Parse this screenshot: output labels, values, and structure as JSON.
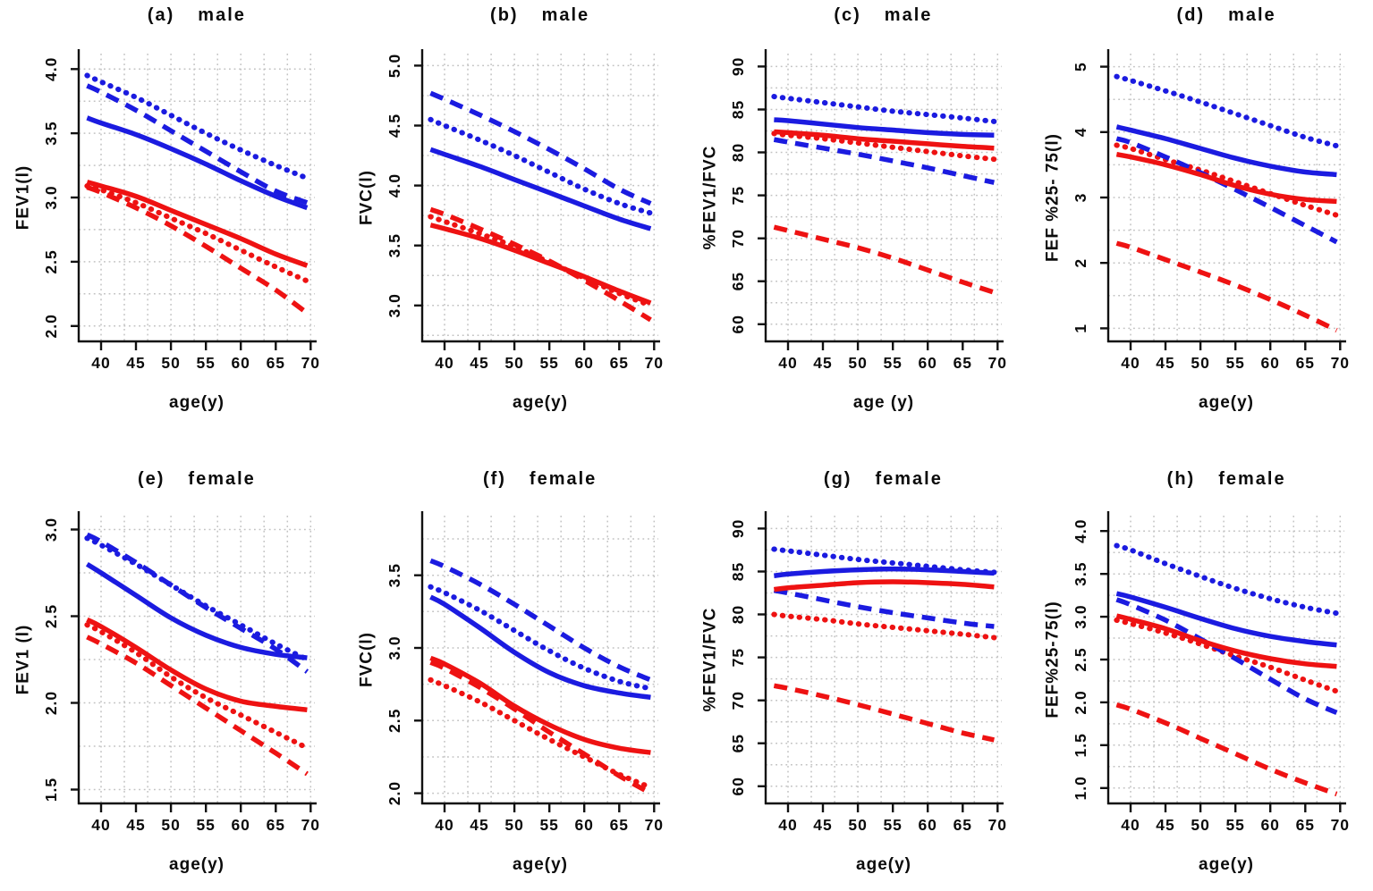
{
  "figure": {
    "background": "#ffffff",
    "rows": 2,
    "cols": 4
  },
  "colors": {
    "blue": "#1b1be0",
    "red": "#ee1212",
    "grid": "#c2c2c2",
    "axis": "#111111"
  },
  "chart_data": [
    {
      "type": "line",
      "title_letter": "(a)",
      "title_group": "male",
      "ylabel": "FEV1(l)",
      "xlabel": "age(y)",
      "xlim": [
        36.8,
        70.6
      ],
      "ylim": [
        1.88,
        4.12
      ],
      "xticks": [
        40,
        45,
        50,
        55,
        60,
        65,
        70
      ],
      "yticks": [
        2.0,
        2.5,
        3.0,
        3.5,
        4.0
      ],
      "ytick_labels": [
        "2.0",
        "2.5",
        "3.0",
        "3.5",
        "4.0"
      ],
      "grid_step": 0.25,
      "grid_on": true,
      "legend": "none",
      "x": [
        38,
        40,
        45,
        50,
        55,
        60,
        65,
        69.5
      ],
      "series": [
        {
          "name": "blue-dotted",
          "color": "blue",
          "style": "dotted",
          "y": [
            3.95,
            3.9,
            3.78,
            3.64,
            3.5,
            3.37,
            3.25,
            3.15
          ]
        },
        {
          "name": "red-dotted",
          "color": "red",
          "style": "dotted",
          "y": [
            3.09,
            3.06,
            2.96,
            2.84,
            2.72,
            2.59,
            2.46,
            2.35
          ]
        },
        {
          "name": "blue-dashed",
          "color": "blue",
          "style": "dashed",
          "y": [
            3.87,
            3.82,
            3.68,
            3.52,
            3.36,
            3.2,
            3.05,
            2.96
          ]
        },
        {
          "name": "red-dashed",
          "color": "red",
          "style": "dashed",
          "y": [
            3.08,
            3.04,
            2.92,
            2.78,
            2.62,
            2.45,
            2.28,
            2.1
          ]
        },
        {
          "name": "blue-solid",
          "color": "blue",
          "style": "solid",
          "y": [
            3.62,
            3.58,
            3.49,
            3.38,
            3.26,
            3.13,
            3.01,
            2.92
          ]
        },
        {
          "name": "red-solid",
          "color": "red",
          "style": "solid",
          "y": [
            3.12,
            3.09,
            3.01,
            2.9,
            2.79,
            2.68,
            2.56,
            2.47
          ]
        }
      ]
    },
    {
      "type": "line",
      "title_letter": "(b)",
      "title_group": "male",
      "ylabel": "FVC(l)",
      "xlabel": "age(y)",
      "xlim": [
        36.8,
        70.6
      ],
      "ylim": [
        2.7,
        5.1
      ],
      "xticks": [
        40,
        45,
        50,
        55,
        60,
        65,
        70
      ],
      "yticks": [
        3.0,
        3.5,
        4.0,
        4.5,
        5.0
      ],
      "ytick_labels": [
        "3.0",
        "3.5",
        "4.0",
        "4.5",
        "5.0"
      ],
      "grid_step": 0.25,
      "grid_on": true,
      "legend": "none",
      "x": [
        38,
        40,
        45,
        50,
        55,
        60,
        65,
        69.5
      ],
      "series": [
        {
          "name": "blue-dotted",
          "color": "blue",
          "style": "dotted",
          "y": [
            4.55,
            4.5,
            4.38,
            4.25,
            4.11,
            3.97,
            3.85,
            3.77
          ]
        },
        {
          "name": "red-dotted",
          "color": "red",
          "style": "dotted",
          "y": [
            3.74,
            3.7,
            3.6,
            3.49,
            3.36,
            3.23,
            3.1,
            3.0
          ]
        },
        {
          "name": "blue-dashed",
          "color": "blue",
          "style": "dashed",
          "y": [
            4.77,
            4.72,
            4.59,
            4.45,
            4.3,
            4.14,
            3.97,
            3.85
          ]
        },
        {
          "name": "red-dashed",
          "color": "red",
          "style": "dashed",
          "y": [
            3.8,
            3.76,
            3.64,
            3.51,
            3.37,
            3.21,
            3.04,
            2.88
          ]
        },
        {
          "name": "blue-solid",
          "color": "blue",
          "style": "solid",
          "y": [
            4.3,
            4.26,
            4.16,
            4.05,
            3.94,
            3.83,
            3.72,
            3.64
          ]
        },
        {
          "name": "red-solid",
          "color": "red",
          "style": "solid",
          "y": [
            3.67,
            3.64,
            3.56,
            3.46,
            3.35,
            3.24,
            3.12,
            3.02
          ]
        }
      ]
    },
    {
      "type": "line",
      "title_letter": "(c)",
      "title_group": "male",
      "ylabel": "%FEV1/FVC",
      "xlabel": "age (y)",
      "xlim": [
        36.8,
        70.6
      ],
      "ylim": [
        58.0,
        91.5
      ],
      "xticks": [
        40,
        45,
        50,
        55,
        60,
        65,
        70
      ],
      "yticks": [
        60,
        65,
        70,
        75,
        80,
        85,
        90
      ],
      "ytick_labels": [
        "60",
        "65",
        "70",
        "75",
        "80",
        "85",
        "90"
      ],
      "grid_step": 2.5,
      "grid_on": true,
      "legend": "none",
      "x": [
        38,
        40,
        45,
        50,
        55,
        60,
        65,
        69.5
      ],
      "series": [
        {
          "name": "blue-dotted",
          "color": "blue",
          "style": "dotted",
          "y": [
            86.5,
            86.3,
            85.8,
            85.3,
            84.8,
            84.4,
            84.0,
            83.6
          ]
        },
        {
          "name": "red-dotted",
          "color": "red",
          "style": "dotted",
          "y": [
            82.2,
            82.0,
            81.6,
            81.1,
            80.6,
            80.1,
            79.6,
            79.2
          ]
        },
        {
          "name": "blue-dashed",
          "color": "blue",
          "style": "dashed",
          "y": [
            81.5,
            81.2,
            80.5,
            79.8,
            79.0,
            78.2,
            77.3,
            76.5
          ]
        },
        {
          "name": "red-dashed",
          "color": "red",
          "style": "dashed",
          "y": [
            71.3,
            70.9,
            69.9,
            68.9,
            67.7,
            66.3,
            64.9,
            63.7
          ]
        },
        {
          "name": "blue-solid",
          "color": "blue",
          "style": "solid",
          "y": [
            83.8,
            83.7,
            83.3,
            82.9,
            82.6,
            82.3,
            82.1,
            82.0
          ]
        },
        {
          "name": "red-solid",
          "color": "red",
          "style": "solid",
          "y": [
            82.4,
            82.3,
            82.0,
            81.6,
            81.3,
            81.0,
            80.7,
            80.5
          ]
        }
      ]
    },
    {
      "type": "line",
      "title_letter": "(d)",
      "title_group": "male",
      "ylabel": "FEF %25- 75(l)",
      "xlabel": "age(y)",
      "xlim": [
        36.8,
        70.6
      ],
      "ylim": [
        0.8,
        5.2
      ],
      "xticks": [
        40,
        45,
        50,
        55,
        60,
        65,
        70
      ],
      "yticks": [
        1,
        2,
        3,
        4,
        5
      ],
      "ytick_labels": [
        "1",
        "2",
        "3",
        "4",
        "5"
      ],
      "grid_step": 0.5,
      "grid_on": true,
      "legend": "none",
      "x": [
        38,
        40,
        45,
        50,
        55,
        60,
        65,
        69.5
      ],
      "series": [
        {
          "name": "blue-dotted",
          "color": "blue",
          "style": "dotted",
          "y": [
            4.85,
            4.79,
            4.63,
            4.46,
            4.28,
            4.1,
            3.92,
            3.79
          ]
        },
        {
          "name": "red-dotted",
          "color": "red",
          "style": "dotted",
          "y": [
            3.8,
            3.75,
            3.58,
            3.42,
            3.24,
            3.06,
            2.88,
            2.73
          ]
        },
        {
          "name": "blue-dashed",
          "color": "blue",
          "style": "dashed",
          "y": [
            3.9,
            3.84,
            3.62,
            3.38,
            3.12,
            2.85,
            2.57,
            2.32
          ]
        },
        {
          "name": "red-dashed",
          "color": "red",
          "style": "dashed",
          "y": [
            2.3,
            2.24,
            2.05,
            1.86,
            1.66,
            1.44,
            1.2,
            0.97
          ]
        },
        {
          "name": "blue-solid",
          "color": "blue",
          "style": "solid",
          "y": [
            4.08,
            4.03,
            3.9,
            3.75,
            3.6,
            3.48,
            3.39,
            3.35
          ]
        },
        {
          "name": "red-solid",
          "color": "red",
          "style": "solid",
          "y": [
            3.66,
            3.62,
            3.5,
            3.35,
            3.18,
            3.05,
            2.97,
            2.94
          ]
        }
      ]
    },
    {
      "type": "line",
      "title_letter": "(e)",
      "title_group": "female",
      "ylabel": "FEV1 (l)",
      "xlabel": "age(y)",
      "xlim": [
        36.8,
        70.6
      ],
      "ylim": [
        1.42,
        3.08
      ],
      "xticks": [
        40,
        45,
        50,
        55,
        60,
        65,
        70
      ],
      "yticks": [
        1.5,
        2.0,
        2.5,
        3.0
      ],
      "ytick_labels": [
        "1.5",
        "2.0",
        "2.5",
        "3.0"
      ],
      "grid_step": 0.25,
      "grid_on": true,
      "legend": "none",
      "x": [
        38,
        40,
        45,
        50,
        55,
        60,
        65,
        69.5
      ],
      "series": [
        {
          "name": "blue-dotted",
          "color": "blue",
          "style": "dotted",
          "y": [
            2.95,
            2.91,
            2.8,
            2.68,
            2.56,
            2.45,
            2.34,
            2.25
          ]
        },
        {
          "name": "red-dotted",
          "color": "red",
          "style": "dotted",
          "y": [
            2.45,
            2.41,
            2.29,
            2.15,
            2.03,
            1.93,
            1.83,
            1.74
          ]
        },
        {
          "name": "blue-dashed",
          "color": "blue",
          "style": "dashed",
          "y": [
            2.97,
            2.93,
            2.81,
            2.68,
            2.55,
            2.43,
            2.31,
            2.18
          ]
        },
        {
          "name": "red-dashed",
          "color": "red",
          "style": "dashed",
          "y": [
            2.38,
            2.34,
            2.23,
            2.1,
            1.97,
            1.84,
            1.71,
            1.59
          ]
        },
        {
          "name": "blue-solid",
          "color": "blue",
          "style": "solid",
          "y": [
            2.8,
            2.75,
            2.62,
            2.49,
            2.39,
            2.32,
            2.28,
            2.26
          ]
        },
        {
          "name": "red-solid",
          "color": "red",
          "style": "solid",
          "y": [
            2.48,
            2.44,
            2.32,
            2.19,
            2.08,
            2.01,
            1.98,
            1.96
          ]
        }
      ]
    },
    {
      "type": "line",
      "title_letter": "(f)",
      "title_group": "female",
      "ylabel": "FVC(l)",
      "xlabel": "age(y)",
      "xlim": [
        36.8,
        70.6
      ],
      "ylim": [
        1.93,
        3.91
      ],
      "xticks": [
        40,
        45,
        50,
        55,
        60,
        65,
        70
      ],
      "yticks": [
        2.0,
        2.5,
        3.0,
        3.5
      ],
      "ytick_labels": [
        "2.0",
        "2.5",
        "3.0",
        "3.5"
      ],
      "grid_step": 0.25,
      "grid_on": true,
      "legend": "none",
      "x": [
        38,
        40,
        45,
        50,
        55,
        60,
        65,
        69.5
      ],
      "series": [
        {
          "name": "blue-dotted",
          "color": "blue",
          "style": "dotted",
          "y": [
            3.42,
            3.38,
            3.26,
            3.12,
            2.98,
            2.86,
            2.77,
            2.72
          ]
        },
        {
          "name": "red-dotted",
          "color": "red",
          "style": "dotted",
          "y": [
            2.78,
            2.74,
            2.63,
            2.5,
            2.37,
            2.25,
            2.13,
            2.04
          ]
        },
        {
          "name": "blue-dashed",
          "color": "blue",
          "style": "dashed",
          "y": [
            3.6,
            3.56,
            3.44,
            3.3,
            3.15,
            3.0,
            2.87,
            2.78
          ]
        },
        {
          "name": "red-dashed",
          "color": "red",
          "style": "dashed",
          "y": [
            2.9,
            2.86,
            2.73,
            2.58,
            2.42,
            2.27,
            2.12,
            2.0
          ]
        },
        {
          "name": "blue-solid",
          "color": "blue",
          "style": "solid",
          "y": [
            3.35,
            3.3,
            3.14,
            2.97,
            2.83,
            2.74,
            2.69,
            2.66
          ]
        },
        {
          "name": "red-solid",
          "color": "red",
          "style": "solid",
          "y": [
            2.93,
            2.89,
            2.76,
            2.6,
            2.47,
            2.37,
            2.31,
            2.28
          ]
        }
      ]
    },
    {
      "type": "line",
      "title_letter": "(g)",
      "title_group": "female",
      "ylabel": "%FEV1/FVC",
      "xlabel": "age(y)",
      "xlim": [
        36.8,
        70.6
      ],
      "ylim": [
        58.0,
        91.5
      ],
      "xticks": [
        40,
        45,
        50,
        55,
        60,
        65,
        70
      ],
      "yticks": [
        60,
        65,
        70,
        75,
        80,
        85,
        90
      ],
      "ytick_labels": [
        "60",
        "65",
        "70",
        "75",
        "80",
        "85",
        "90"
      ],
      "grid_step": 2.5,
      "grid_on": true,
      "legend": "none",
      "x": [
        38,
        40,
        45,
        50,
        55,
        60,
        65,
        69.5
      ],
      "series": [
        {
          "name": "blue-dotted",
          "color": "blue",
          "style": "dotted",
          "y": [
            87.6,
            87.4,
            86.9,
            86.4,
            86.0,
            85.6,
            85.2,
            84.9
          ]
        },
        {
          "name": "red-dotted",
          "color": "red",
          "style": "dotted",
          "y": [
            80.0,
            79.8,
            79.4,
            78.9,
            78.5,
            78.1,
            77.7,
            77.3
          ]
        },
        {
          "name": "blue-dashed",
          "color": "blue",
          "style": "dashed",
          "y": [
            82.8,
            82.5,
            81.7,
            80.9,
            80.2,
            79.6,
            79.0,
            78.6
          ]
        },
        {
          "name": "red-dashed",
          "color": "red",
          "style": "dashed",
          "y": [
            71.7,
            71.4,
            70.5,
            69.5,
            68.4,
            67.3,
            66.2,
            65.4
          ]
        },
        {
          "name": "blue-solid",
          "color": "blue",
          "style": "solid",
          "y": [
            84.5,
            84.7,
            85.0,
            85.2,
            85.3,
            85.2,
            85.0,
            84.8
          ]
        },
        {
          "name": "red-solid",
          "color": "red",
          "style": "solid",
          "y": [
            82.9,
            83.1,
            83.4,
            83.7,
            83.8,
            83.7,
            83.5,
            83.2
          ]
        }
      ]
    },
    {
      "type": "line",
      "title_letter": "(h)",
      "title_group": "female",
      "ylabel": "FEF%25-75(l)",
      "xlabel": "age(y)",
      "xlim": [
        36.8,
        70.6
      ],
      "ylim": [
        0.82,
        4.18
      ],
      "xticks": [
        40,
        45,
        50,
        55,
        60,
        65,
        70
      ],
      "yticks": [
        1.0,
        1.5,
        2.0,
        2.5,
        3.0,
        3.5,
        4.0
      ],
      "ytick_labels": [
        "1.0",
        "1.5",
        "2.0",
        "2.5",
        "3.0",
        "3.5",
        "4.0"
      ],
      "grid_step": 0.25,
      "grid_on": true,
      "legend": "none",
      "x": [
        38,
        40,
        45,
        50,
        55,
        60,
        65,
        69.5
      ],
      "series": [
        {
          "name": "blue-dotted",
          "color": "blue",
          "style": "dotted",
          "y": [
            3.83,
            3.78,
            3.62,
            3.47,
            3.33,
            3.21,
            3.11,
            3.04
          ]
        },
        {
          "name": "red-dotted",
          "color": "red",
          "style": "dotted",
          "y": [
            2.96,
            2.92,
            2.81,
            2.68,
            2.54,
            2.41,
            2.26,
            2.13
          ]
        },
        {
          "name": "blue-dashed",
          "color": "blue",
          "style": "dashed",
          "y": [
            3.2,
            3.14,
            2.96,
            2.74,
            2.51,
            2.27,
            2.04,
            1.88
          ]
        },
        {
          "name": "red-dashed",
          "color": "red",
          "style": "dashed",
          "y": [
            1.97,
            1.92,
            1.76,
            1.58,
            1.4,
            1.22,
            1.06,
            0.93
          ]
        },
        {
          "name": "blue-solid",
          "color": "blue",
          "style": "solid",
          "y": [
            3.27,
            3.23,
            3.11,
            2.98,
            2.86,
            2.77,
            2.71,
            2.67
          ]
        },
        {
          "name": "red-solid",
          "color": "red",
          "style": "solid",
          "y": [
            3.01,
            2.97,
            2.86,
            2.72,
            2.6,
            2.51,
            2.45,
            2.42
          ]
        }
      ]
    }
  ]
}
